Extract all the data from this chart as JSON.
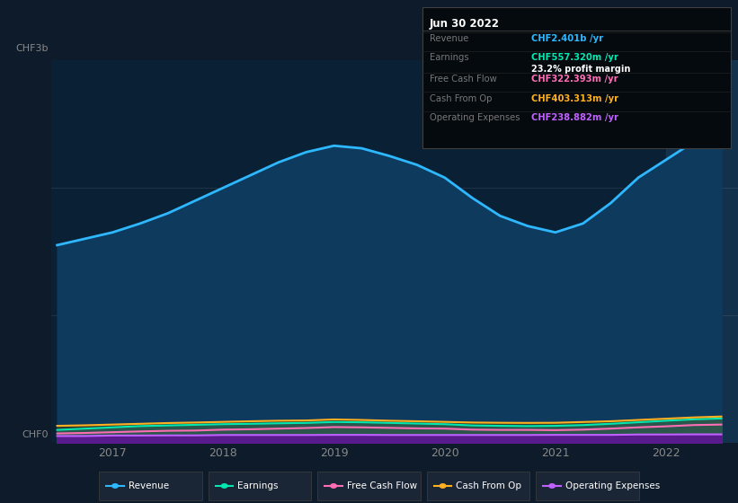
{
  "bg_color": "#0d1b2a",
  "plot_bg_color": "#0a2035",
  "left_margin_color": "#0d1b2a",
  "title_date": "Jun 30 2022",
  "info_box": {
    "Revenue": {
      "value": "CHF2.401b",
      "color": "#2db8ff"
    },
    "Earnings": {
      "value": "CHF557.320m",
      "color": "#00e8b0"
    },
    "profit_margin": "23.2%",
    "Free Cash Flow": {
      "value": "CHF322.393m",
      "color": "#ff6eb4"
    },
    "Cash From Op": {
      "value": "CHF403.313m",
      "color": "#ffb020"
    },
    "Operating Expenses": {
      "value": "CHF238.882m",
      "color": "#c060ff"
    }
  },
  "years": [
    2016.5,
    2016.75,
    2017.0,
    2017.25,
    2017.5,
    2017.75,
    2018.0,
    2018.25,
    2018.5,
    2018.75,
    2019.0,
    2019.25,
    2019.5,
    2019.75,
    2020.0,
    2020.25,
    2020.5,
    2020.75,
    2021.0,
    2021.25,
    2021.5,
    2021.75,
    2022.0,
    2022.25,
    2022.5
  ],
  "revenue": [
    1.55,
    1.6,
    1.65,
    1.72,
    1.8,
    1.9,
    2.0,
    2.1,
    2.2,
    2.28,
    2.33,
    2.31,
    2.25,
    2.18,
    2.08,
    1.92,
    1.78,
    1.7,
    1.65,
    1.72,
    1.88,
    2.08,
    2.22,
    2.36,
    2.42
  ],
  "earnings": [
    0.1,
    0.11,
    0.12,
    0.13,
    0.135,
    0.14,
    0.145,
    0.148,
    0.152,
    0.155,
    0.162,
    0.16,
    0.155,
    0.15,
    0.145,
    0.135,
    0.132,
    0.13,
    0.132,
    0.138,
    0.148,
    0.16,
    0.172,
    0.183,
    0.19
  ],
  "free_cash_flow": [
    0.072,
    0.076,
    0.082,
    0.088,
    0.093,
    0.095,
    0.102,
    0.105,
    0.11,
    0.115,
    0.122,
    0.12,
    0.116,
    0.112,
    0.11,
    0.102,
    0.1,
    0.1,
    0.098,
    0.102,
    0.11,
    0.12,
    0.128,
    0.138,
    0.142
  ],
  "cash_from_op": [
    0.132,
    0.136,
    0.142,
    0.148,
    0.154,
    0.158,
    0.163,
    0.168,
    0.172,
    0.174,
    0.182,
    0.178,
    0.172,
    0.168,
    0.163,
    0.158,
    0.156,
    0.155,
    0.156,
    0.162,
    0.168,
    0.178,
    0.188,
    0.198,
    0.205
  ],
  "op_expenses": [
    0.052,
    0.052,
    0.056,
    0.056,
    0.057,
    0.057,
    0.06,
    0.06,
    0.06,
    0.06,
    0.061,
    0.061,
    0.06,
    0.06,
    0.06,
    0.06,
    0.06,
    0.06,
    0.061,
    0.061,
    0.061,
    0.064,
    0.064,
    0.065,
    0.065
  ],
  "revenue_color": "#2db8ff",
  "revenue_fill": "#0e3a5e",
  "earnings_color": "#00e8b0",
  "earnings_fill": "#00e8b0",
  "fcf_color": "#ff6eb4",
  "fcf_fill": "#7a3555",
  "cashop_color": "#ffb020",
  "cashop_fill": "#7a5010",
  "opex_color": "#c060ff",
  "opex_fill": "#5a1890",
  "highlight_x_start": 2022.0,
  "ylim": [
    0,
    3.0
  ],
  "ylabel_top": "CHF3b",
  "ylabel_bottom": "CHF0",
  "xticks": [
    2017,
    2018,
    2019,
    2020,
    2021,
    2022
  ],
  "gridline_y": [
    1.0,
    2.0
  ],
  "legend_items": [
    {
      "label": "Revenue",
      "color": "#2db8ff"
    },
    {
      "label": "Earnings",
      "color": "#00e8b0"
    },
    {
      "label": "Free Cash Flow",
      "color": "#ff6eb4"
    },
    {
      "label": "Cash From Op",
      "color": "#ffb020"
    },
    {
      "label": "Operating Expenses",
      "color": "#c060ff"
    }
  ]
}
